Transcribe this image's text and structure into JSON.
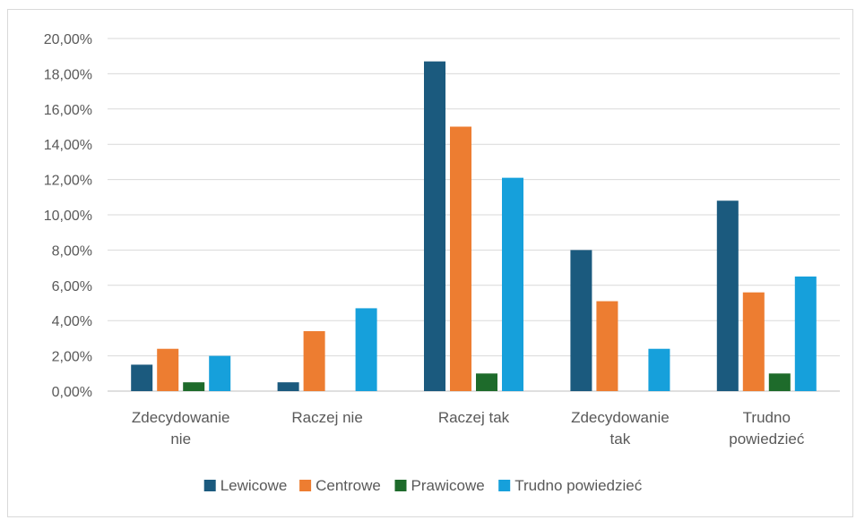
{
  "chart_data": {
    "type": "bar",
    "title": "",
    "xlabel": "",
    "ylabel": "",
    "categories": [
      [
        "Zdecydowanie",
        "nie"
      ],
      [
        "Raczej nie"
      ],
      [
        "Raczej tak"
      ],
      [
        "Zdecydowanie",
        "tak"
      ],
      [
        "Trudno",
        "powiedzieć"
      ]
    ],
    "series": [
      {
        "name": "Lewicowe",
        "color": "#1b5a7e",
        "values": [
          1.5,
          0.5,
          18.7,
          8.0,
          10.8
        ]
      },
      {
        "name": "Centrowe",
        "color": "#ed7d31",
        "values": [
          2.4,
          3.4,
          15.0,
          5.1,
          5.6
        ]
      },
      {
        "name": "Prawicowe",
        "color": "#1e6b2b",
        "values": [
          0.5,
          0.0,
          1.0,
          0.0,
          1.0
        ]
      },
      {
        "name": "Trudno powiedzieć",
        "color": "#16a0db",
        "values": [
          2.0,
          4.7,
          12.1,
          2.4,
          6.5
        ]
      }
    ],
    "ylim": [
      0,
      20
    ],
    "yticks": [
      "0,00%",
      "2,00%",
      "4,00%",
      "6,00%",
      "8,00%",
      "10,00%",
      "12,00%",
      "14,00%",
      "16,00%",
      "18,00%",
      "20,00%"
    ],
    "grid": true,
    "legend_position": "bottom"
  }
}
